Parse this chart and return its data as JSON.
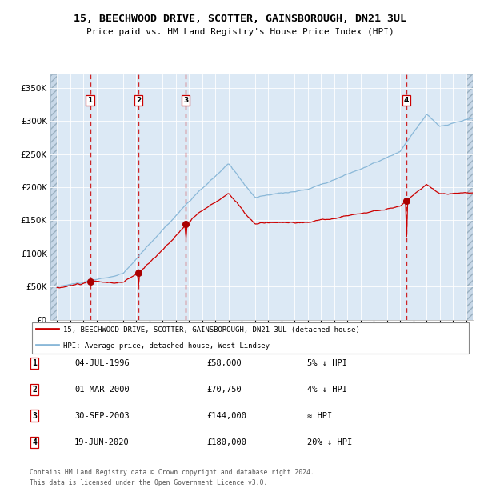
{
  "title": "15, BEECHWOOD DRIVE, SCOTTER, GAINSBOROUGH, DN21 3UL",
  "subtitle": "Price paid vs. HM Land Registry's House Price Index (HPI)",
  "legend_red": "15, BEECHWOOD DRIVE, SCOTTER, GAINSBOROUGH, DN21 3UL (detached house)",
  "legend_blue": "HPI: Average price, detached house, West Lindsey",
  "footer1": "Contains HM Land Registry data © Crown copyright and database right 2024.",
  "footer2": "This data is licensed under the Open Government Licence v3.0.",
  "sales": [
    {
      "num": 1,
      "date": "04-JUL-1996",
      "price": 58000,
      "note": "5% ↓ HPI",
      "x_year": 1996.5
    },
    {
      "num": 2,
      "date": "01-MAR-2000",
      "price": 70750,
      "note": "4% ↓ HPI",
      "x_year": 2000.17
    },
    {
      "num": 3,
      "date": "30-SEP-2003",
      "price": 144000,
      "note": "≈ HPI",
      "x_year": 2003.75
    },
    {
      "num": 4,
      "date": "19-JUN-2020",
      "price": 180000,
      "note": "20% ↓ HPI",
      "x_year": 2020.46
    }
  ],
  "xlim": [
    1993.5,
    2025.5
  ],
  "ylim": [
    0,
    370000
  ],
  "yticks": [
    0,
    50000,
    100000,
    150000,
    200000,
    250000,
    300000,
    350000
  ],
  "ytick_labels": [
    "£0",
    "£50K",
    "£100K",
    "£150K",
    "£200K",
    "£250K",
    "£300K",
    "£350K"
  ],
  "bg_color": "#dce9f5",
  "grid_color": "#ffffff",
  "red_color": "#cc0000",
  "blue_color": "#8ab8d8",
  "sale_dot_color": "#aa0000",
  "hatch_face": "#c8d8e8"
}
